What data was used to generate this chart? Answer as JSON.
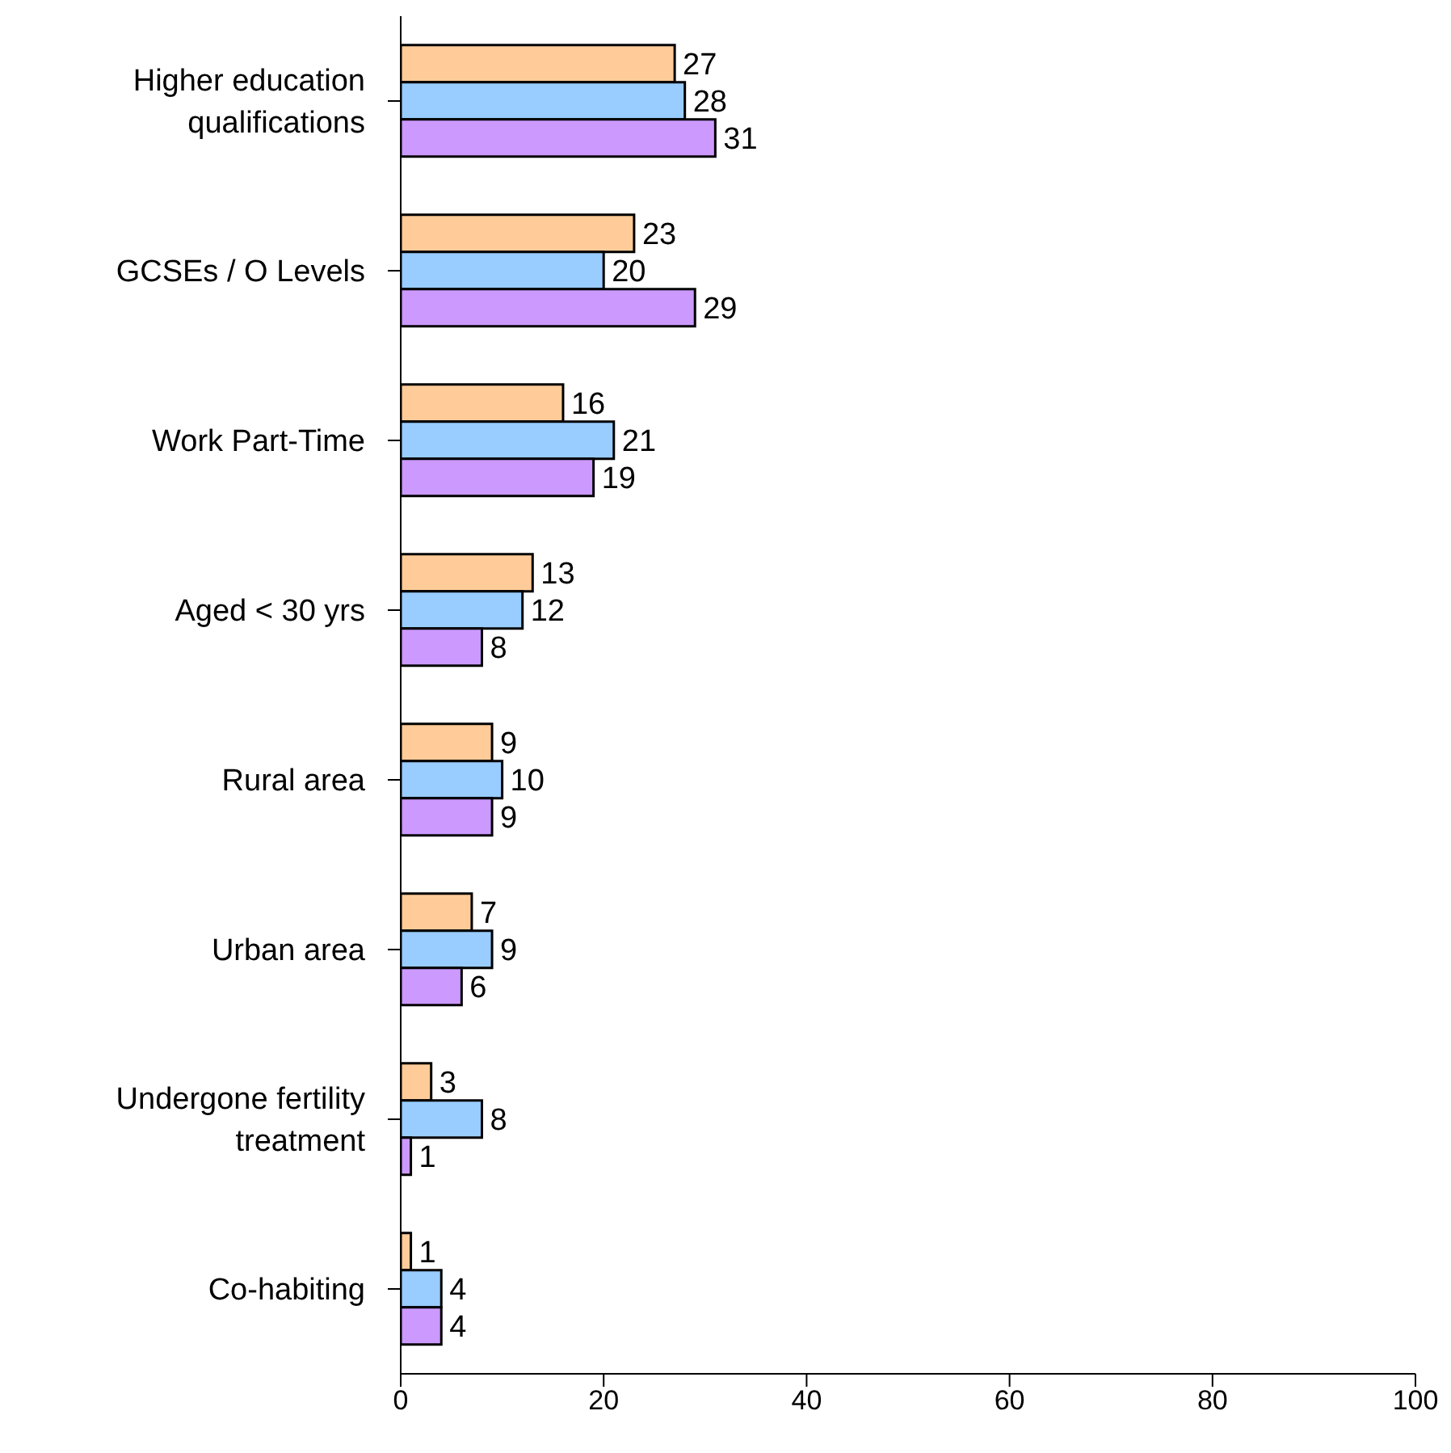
{
  "chart_data": {
    "type": "bar",
    "orientation": "horizontal",
    "categories": [
      "Higher education qualifications",
      "GCSEs / O Levels",
      "Work Part-Time",
      "Aged < 30 yrs",
      "Rural area",
      "Urban area",
      "Undergone fertility treatment",
      "Co-habiting"
    ],
    "series": [
      {
        "color": "#ffcc99",
        "values": [
          27,
          23,
          16,
          13,
          9,
          7,
          3,
          1
        ]
      },
      {
        "color": "#99ccff",
        "values": [
          28,
          20,
          21,
          12,
          10,
          9,
          8,
          4
        ]
      },
      {
        "color": "#cc99ff",
        "values": [
          31,
          29,
          19,
          8,
          9,
          6,
          1,
          4
        ]
      }
    ],
    "xlim": [
      0,
      100
    ],
    "xticks": [
      0,
      20,
      40,
      60,
      80,
      100
    ],
    "data_labels": true,
    "grid": false,
    "legend": false
  }
}
